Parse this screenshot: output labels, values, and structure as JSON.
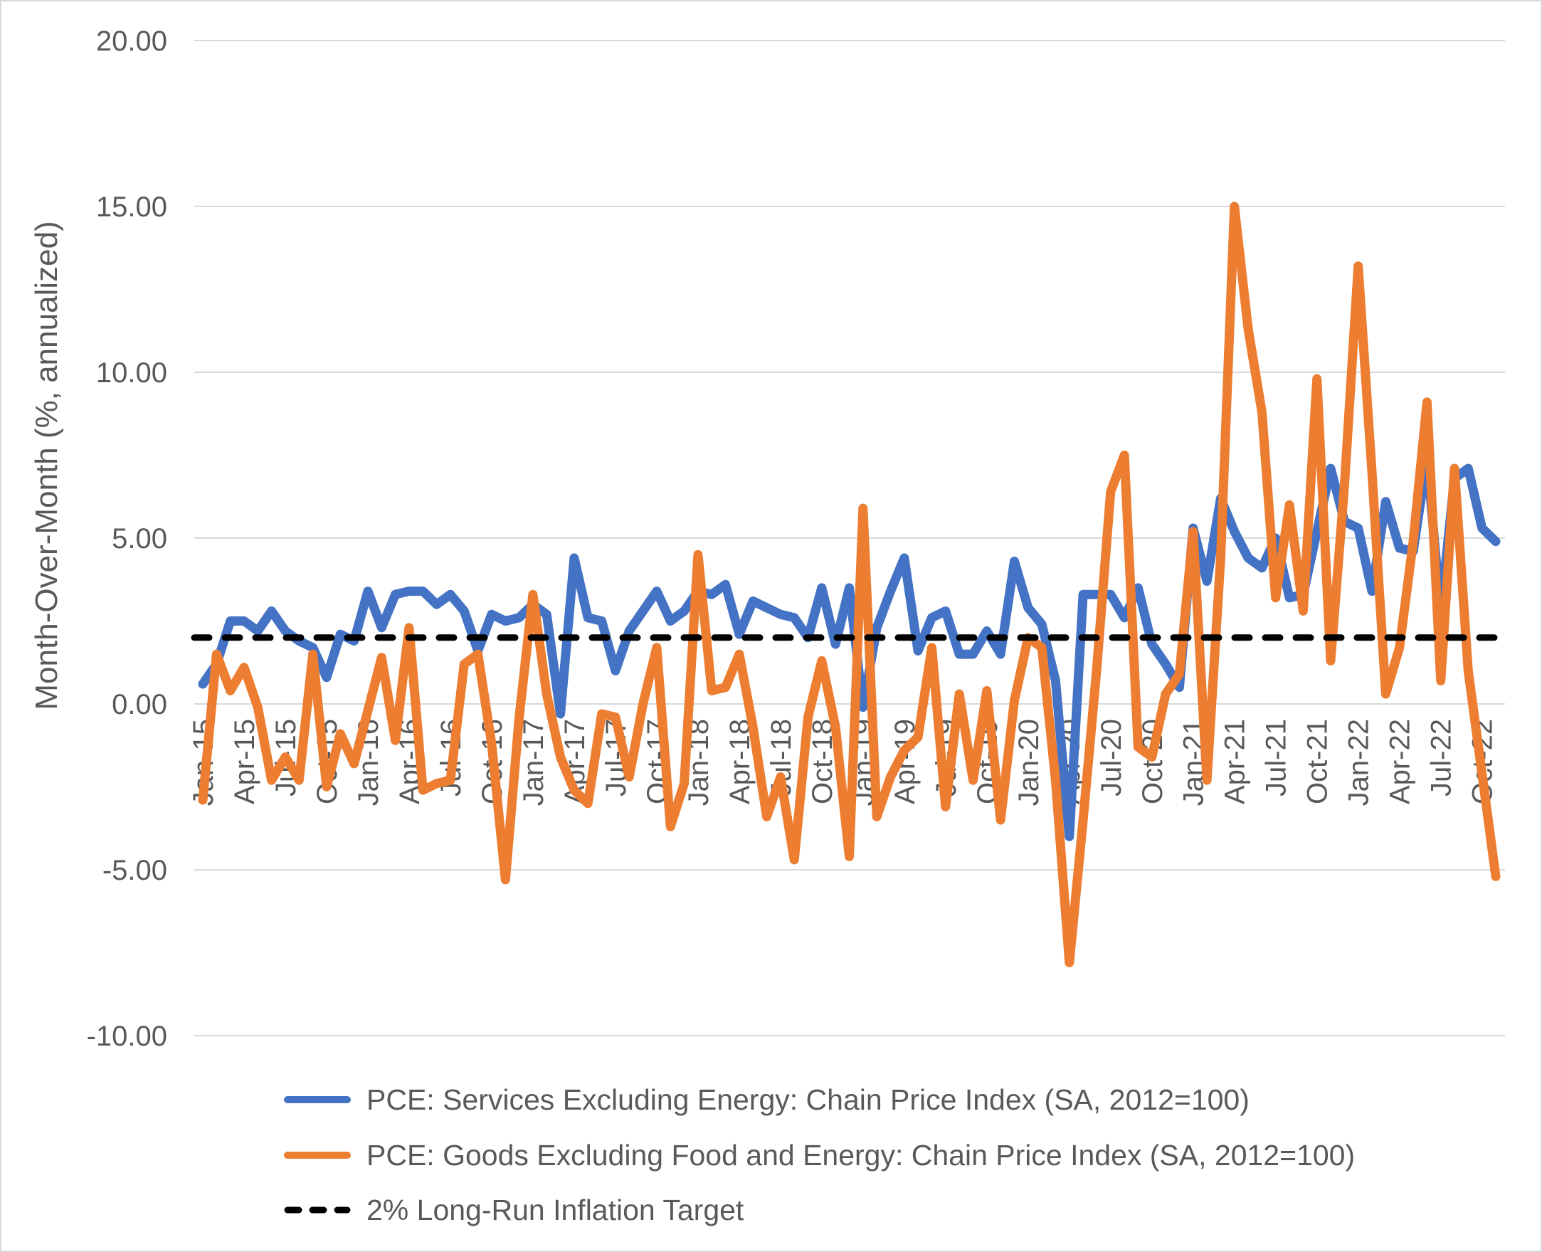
{
  "figure": {
    "background": "#FFFFFF",
    "border_color": "#D9D9D9",
    "text_color": "#595959",
    "gridline_color": "#D9D9D9"
  },
  "chart_data": {
    "type": "line",
    "title": "",
    "xlabel": "",
    "ylabel": "Month-Over-Month (%, annualized)",
    "ylim": [
      -10,
      20
    ],
    "ytick_step": 5,
    "ytick_values": [
      20,
      15,
      10,
      5,
      0,
      -5,
      -10
    ],
    "ytick_labels": [
      "20.00",
      "15.00",
      "10.00",
      "5.00",
      "0.00",
      "-5.00",
      "-10.00"
    ],
    "grid": "horizontal-only",
    "x_label_every": 3,
    "x_label_rotation_deg": -90,
    "legend_position": "bottom-left",
    "categories": [
      "Jan-15",
      "Feb-15",
      "Mar-15",
      "Apr-15",
      "May-15",
      "Jun-15",
      "Jul-15",
      "Aug-15",
      "Sep-15",
      "Oct-15",
      "Nov-15",
      "Dec-15",
      "Jan-16",
      "Feb-16",
      "Mar-16",
      "Apr-16",
      "May-16",
      "Jun-16",
      "Jul-16",
      "Aug-16",
      "Sep-16",
      "Oct-16",
      "Nov-16",
      "Dec-16",
      "Jan-17",
      "Feb-17",
      "Mar-17",
      "Apr-17",
      "May-17",
      "Jun-17",
      "Jul-17",
      "Aug-17",
      "Sep-17",
      "Oct-17",
      "Nov-17",
      "Dec-17",
      "Jan-18",
      "Feb-18",
      "Mar-18",
      "Apr-18",
      "May-18",
      "Jun-18",
      "Jul-18",
      "Aug-18",
      "Sep-18",
      "Oct-18",
      "Nov-18",
      "Dec-18",
      "Jan-19",
      "Feb-19",
      "Mar-19",
      "Apr-19",
      "May-19",
      "Jun-19",
      "Jul-19",
      "Aug-19",
      "Sep-19",
      "Oct-19",
      "Nov-19",
      "Dec-19",
      "Jan-20",
      "Feb-20",
      "Mar-20",
      "Apr-20",
      "May-20",
      "Jun-20",
      "Jul-20",
      "Aug-20",
      "Sep-20",
      "Oct-20",
      "Nov-20",
      "Dec-20",
      "Jan-21",
      "Feb-21",
      "Mar-21",
      "Apr-21",
      "May-21",
      "Jun-21",
      "Jul-21",
      "Aug-21",
      "Sep-21",
      "Oct-21",
      "Nov-21",
      "Dec-21",
      "Jan-22",
      "Feb-22",
      "Mar-22",
      "Apr-22",
      "May-22",
      "Jun-22",
      "Jul-22",
      "Aug-22",
      "Sep-22",
      "Oct-22",
      "Nov-22"
    ],
    "series": [
      {
        "name": "PCE: Services Excluding Energy: Chain Price Index (SA, 2012=100)",
        "color": "#4472C4",
        "values": [
          0.6,
          1.2,
          2.5,
          2.5,
          2.2,
          2.8,
          2.2,
          1.9,
          1.7,
          0.8,
          2.1,
          1.9,
          3.4,
          2.3,
          3.3,
          3.4,
          3.4,
          3.0,
          3.3,
          2.8,
          1.6,
          2.7,
          2.5,
          2.6,
          3.0,
          2.7,
          -0.3,
          4.4,
          2.6,
          2.5,
          1.0,
          2.2,
          2.8,
          3.4,
          2.5,
          2.8,
          3.4,
          3.3,
          3.6,
          2.1,
          3.1,
          2.9,
          2.7,
          2.6,
          2.0,
          3.5,
          1.8,
          3.5,
          -0.1,
          2.3,
          3.4,
          4.4,
          1.6,
          2.6,
          2.8,
          1.5,
          1.5,
          2.2,
          1.5,
          4.3,
          2.9,
          2.4,
          0.7,
          -4.0,
          3.3,
          3.3,
          3.3,
          2.6,
          3.5,
          1.8,
          1.2,
          0.5,
          5.3,
          3.7,
          6.2,
          5.2,
          4.4,
          4.1,
          5.0,
          3.2,
          3.3,
          5.2,
          7.1,
          5.5,
          5.3,
          3.4,
          6.1,
          4.7,
          4.6,
          7.4,
          2.8,
          6.8,
          7.1,
          5.3,
          4.9
        ]
      },
      {
        "name": "PCE: Goods Excluding Food and Energy: Chain Price Index (SA, 2012=100)",
        "color": "#ED7D31",
        "values": [
          -2.9,
          1.5,
          0.4,
          1.1,
          -0.1,
          -2.3,
          -1.6,
          -2.3,
          1.5,
          -2.5,
          -0.9,
          -1.8,
          -0.2,
          1.4,
          -1.1,
          2.3,
          -2.6,
          -2.4,
          -2.3,
          1.2,
          1.5,
          -1.2,
          -5.3,
          -0.4,
          3.3,
          0.3,
          -1.6,
          -2.6,
          -3.0,
          -0.3,
          -0.4,
          -2.2,
          0.0,
          1.7,
          -3.7,
          -2.4,
          4.5,
          0.4,
          0.5,
          1.5,
          -0.7,
          -3.4,
          -2.2,
          -4.7,
          -0.4,
          1.3,
          -0.7,
          -4.6,
          5.9,
          -3.4,
          -2.2,
          -1.4,
          -1.0,
          1.7,
          -3.1,
          0.3,
          -2.3,
          0.4,
          -3.5,
          0.1,
          2.0,
          1.7,
          -2.3,
          -7.8,
          -3.5,
          1.1,
          6.4,
          7.5,
          -1.3,
          -1.6,
          0.3,
          0.9,
          5.2,
          -2.3,
          4.4,
          15.0,
          11.3,
          8.8,
          3.2,
          6.0,
          2.8,
          9.8,
          1.3,
          6.6,
          13.2,
          7.0,
          0.3,
          1.7,
          4.9,
          9.1,
          0.7,
          7.1,
          1.0,
          -2.1,
          -5.2
        ]
      }
    ],
    "reference_line": {
      "label": "2% Long-Run Inflation Target",
      "value": 2,
      "color": "#000000",
      "style": "dashed"
    }
  }
}
